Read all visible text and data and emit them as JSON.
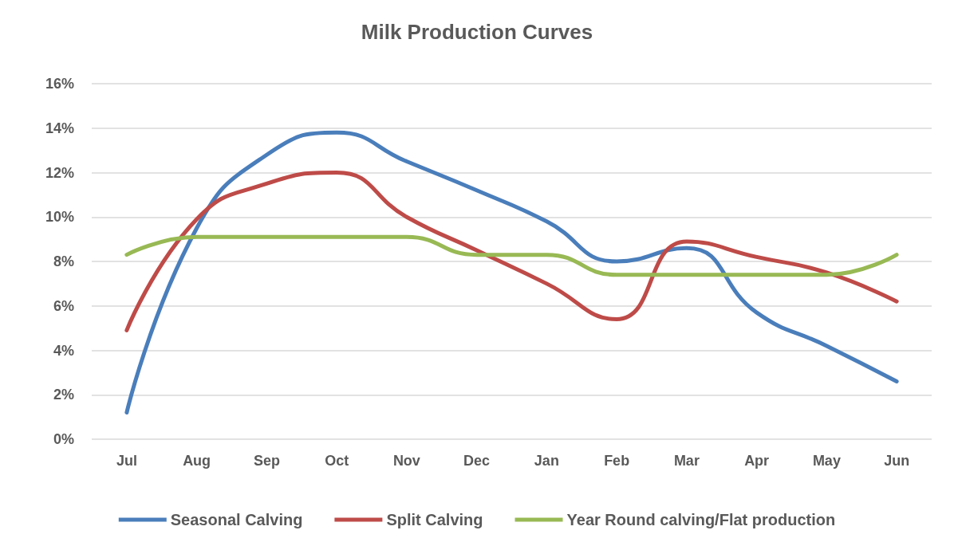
{
  "chart_data": {
    "type": "line",
    "title": "Milk Production Curves",
    "categories": [
      "Jul",
      "Aug",
      "Sep",
      "Oct",
      "Nov",
      "Dec",
      "Jan",
      "Feb",
      "Mar",
      "Apr",
      "May",
      "Jun"
    ],
    "series": [
      {
        "name": "Seasonal Calving",
        "color": "#4a7ebb",
        "values": [
          1.2,
          9.5,
          12.8,
          13.8,
          12.5,
          11.2,
          9.8,
          8.0,
          8.6,
          5.7,
          4.2,
          2.6
        ]
      },
      {
        "name": "Split Calving",
        "color": "#be4b48",
        "values": [
          4.9,
          9.9,
          11.5,
          12.0,
          10.0,
          8.5,
          7.0,
          5.4,
          8.9,
          8.2,
          7.5,
          6.2
        ]
      },
      {
        "name": "Year Round calving/Flat production",
        "color": "#98b954",
        "values": [
          8.3,
          9.1,
          9.1,
          9.1,
          9.1,
          8.3,
          8.3,
          7.4,
          7.4,
          7.4,
          7.4,
          8.3
        ]
      }
    ],
    "ylim": [
      0,
      16
    ],
    "yticks": [
      {
        "value": 0,
        "label": "0%"
      },
      {
        "value": 2,
        "label": "2%"
      },
      {
        "value": 4,
        "label": "4%"
      },
      {
        "value": 6,
        "label": "6%"
      },
      {
        "value": 8,
        "label": "8%"
      },
      {
        "value": 10,
        "label": "10%"
      },
      {
        "value": 12,
        "label": "12%"
      },
      {
        "value": 14,
        "label": "14%"
      },
      {
        "value": 16,
        "label": "16%"
      }
    ],
    "grid": "y",
    "legend": "bottom",
    "marker": "none",
    "line_style": "solid"
  }
}
